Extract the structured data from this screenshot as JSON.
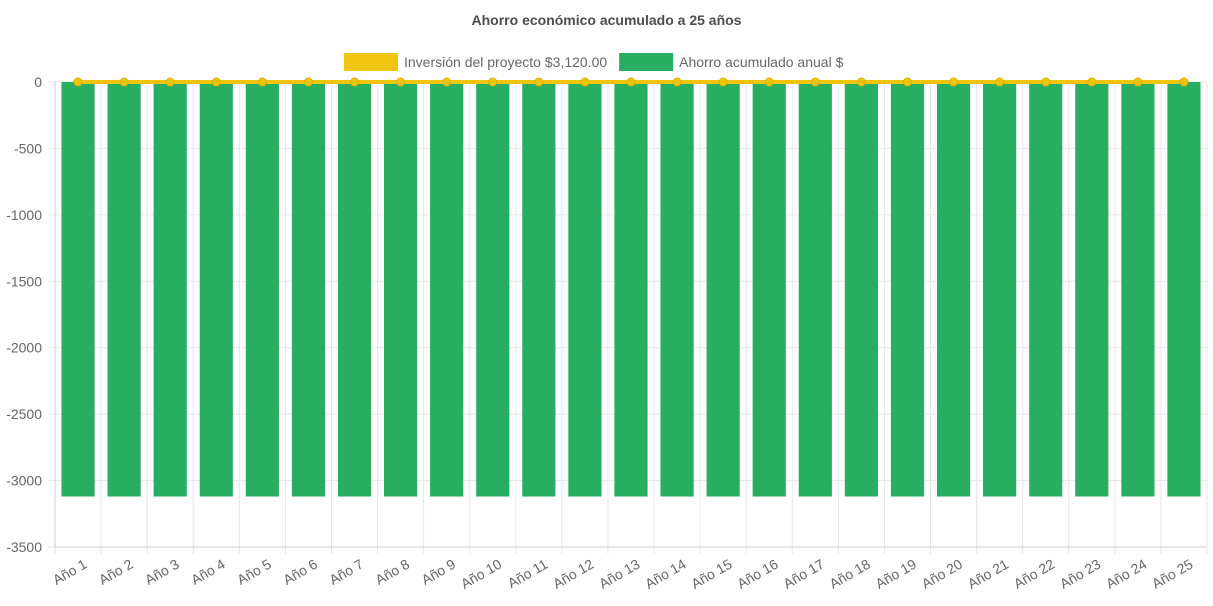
{
  "chart_data": {
    "type": "bar",
    "title": "Ahorro económico acumulado a 25 años",
    "categories": [
      "Año 1",
      "Año 2",
      "Año 3",
      "Año 4",
      "Año 5",
      "Año 6",
      "Año 7",
      "Año 8",
      "Año 9",
      "Año 10",
      "Año 11",
      "Año 12",
      "Año 13",
      "Año 14",
      "Año 15",
      "Año 16",
      "Año 17",
      "Año 18",
      "Año 19",
      "Año 20",
      "Año 21",
      "Año 22",
      "Año 23",
      "Año 24",
      "Año 25"
    ],
    "series": [
      {
        "name": "Inversión del proyecto $3,120.00",
        "type": "line",
        "color": "#f1c40f",
        "values": [
          0,
          0,
          0,
          0,
          0,
          0,
          0,
          0,
          0,
          0,
          0,
          0,
          0,
          0,
          0,
          0,
          0,
          0,
          0,
          0,
          0,
          0,
          0,
          0,
          0
        ]
      },
      {
        "name": "Ahorro acumulado anual $",
        "type": "bar",
        "color": "#27ae60",
        "values": [
          -3120,
          -3120,
          -3120,
          -3120,
          -3120,
          -3120,
          -3120,
          -3120,
          -3120,
          -3120,
          -3120,
          -3120,
          -3120,
          -3120,
          -3120,
          -3120,
          -3120,
          -3120,
          -3120,
          -3120,
          -3120,
          -3120,
          -3120,
          -3120,
          -3120
        ]
      }
    ],
    "ylim": [
      -3500,
      0
    ],
    "yticks": [
      0,
      -500,
      -1000,
      -1500,
      -2000,
      -2500,
      -3000,
      -3500
    ],
    "xlabel": "",
    "ylabel": "",
    "grid": true,
    "legend_position": "top"
  }
}
